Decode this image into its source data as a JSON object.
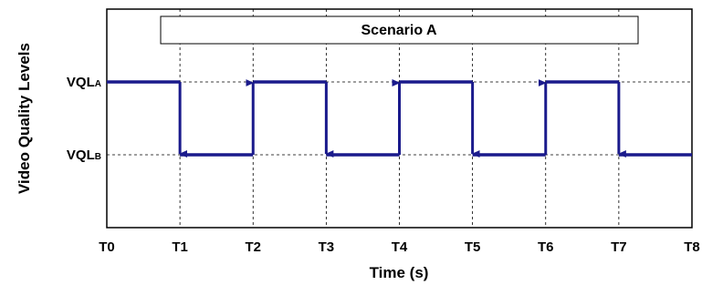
{
  "chart_data": {
    "type": "line",
    "step": true,
    "annotation": "Scenario A",
    "xlabel": "Time (s)",
    "ylabel": "Video Quality Levels",
    "x_ticks": [
      "T0",
      "T1",
      "T2",
      "T3",
      "T4",
      "T5",
      "T6",
      "T7",
      "T8"
    ],
    "y_levels": [
      {
        "id": "A",
        "base": "VQL",
        "sub": "A",
        "value": 2
      },
      {
        "id": "B",
        "base": "VQL",
        "sub": "B",
        "value": 1
      }
    ],
    "xlim": [
      0,
      8
    ],
    "ylim": [
      0,
      3
    ],
    "grid": "dashed at T1..T7 and quality levels",
    "series": [
      {
        "color": "#1a1a8c",
        "points": [
          [
            0,
            "A"
          ],
          [
            1,
            "A"
          ],
          [
            1,
            "B"
          ],
          [
            2,
            "B"
          ],
          [
            2,
            "A"
          ],
          [
            3,
            "A"
          ],
          [
            3,
            "B"
          ],
          [
            4,
            "B"
          ],
          [
            4,
            "A"
          ],
          [
            5,
            "A"
          ],
          [
            5,
            "B"
          ],
          [
            6,
            "B"
          ],
          [
            6,
            "A"
          ],
          [
            7,
            "A"
          ],
          [
            7,
            "B"
          ],
          [
            8,
            "B"
          ]
        ],
        "arrows_at": [
          1,
          2,
          3,
          4,
          5,
          6,
          7
        ]
      }
    ]
  }
}
